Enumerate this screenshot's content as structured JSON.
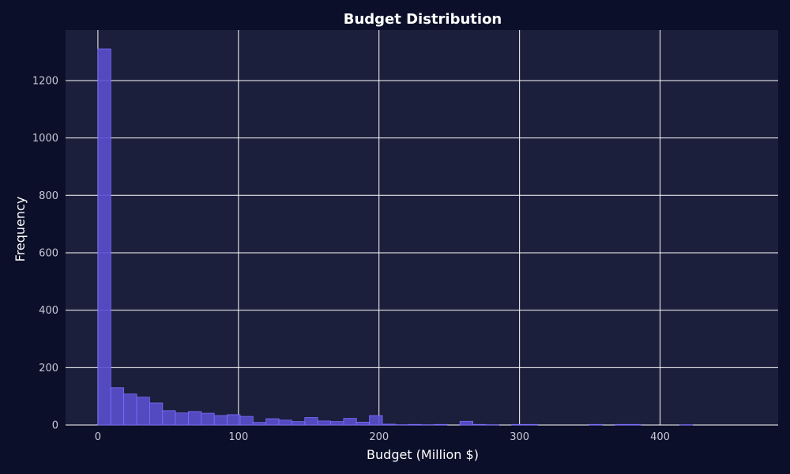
{
  "chart_data": {
    "type": "bar",
    "title": "Budget Distribution",
    "xlabel": "Budget (Million $)",
    "ylabel": "Frequency",
    "bin_width": 9.2,
    "bin_start": 0,
    "values": [
      1310,
      130,
      108,
      97,
      77,
      50,
      42,
      47,
      41,
      33,
      36,
      30,
      9,
      22,
      17,
      12,
      26,
      14,
      12,
      23,
      10,
      33,
      3,
      1,
      2,
      1,
      2,
      0,
      13,
      2,
      1,
      0,
      2,
      2,
      0,
      0,
      0,
      0,
      2,
      0,
      2,
      2,
      0,
      0,
      0,
      1,
      0,
      0,
      0,
      0
    ],
    "xlim": [
      -23,
      484
    ],
    "ylim": [
      0,
      1376
    ],
    "xticks": [
      0,
      100,
      200,
      300,
      400
    ],
    "yticks": [
      0,
      200,
      400,
      600,
      800,
      1000,
      1200
    ],
    "grid": true,
    "legend": false,
    "colors": {
      "page_background": "#0b0f29",
      "plot_background": "#1b1f3b",
      "bar_fill": "#5a4fcf",
      "bar_edge": "#7b6fff",
      "grid": "#ffffff"
    }
  }
}
